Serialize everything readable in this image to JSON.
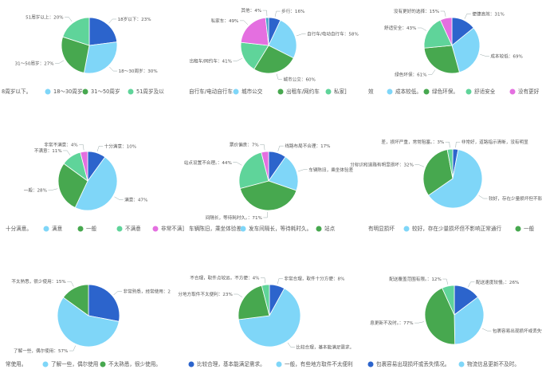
{
  "chart_data": [
    {
      "type": "pie",
      "slices": [
        {
          "label": "18岁以下",
          "value": 23,
          "color": "#2c64cc"
        },
        {
          "label": "18～30周岁",
          "value": 30,
          "color": "#7fd6f8"
        },
        {
          "label": "31～50周岁",
          "value": 27,
          "color": "#47a84f"
        },
        {
          "label": "51周岁以上",
          "value": 20,
          "color": "#5fd49a"
        }
      ],
      "slice_texts": [
        "18岁以下：23%",
        "18～30周岁：30%",
        "31～50周岁：27%",
        "51周岁以上：20%"
      ],
      "legend": [
        "8周岁以下。",
        "18～30周岁",
        "31～50周岁",
        "51周岁及以"
      ]
    },
    {
      "type": "pie",
      "slices": [
        {
          "label": "步行",
          "value": 16,
          "color": "#2c64cc"
        },
        {
          "label": "自行车/电动自行车",
          "value": 58,
          "color": "#7fd6f8"
        },
        {
          "label": "城市公交",
          "value": 60,
          "color": "#47a84f"
        },
        {
          "label": "出租车/网约车",
          "value": 41,
          "color": "#5fd49a"
        },
        {
          "label": "私家车",
          "value": 49,
          "color": "#e46fe0"
        },
        {
          "label": "其他",
          "value": 4,
          "color": "#3fa1c6"
        }
      ],
      "slice_texts": [
        "步行：16%",
        "自行车/电动自行车：58%",
        "城市公交：60%",
        "出租车/网约车：41%",
        "私家车：49%",
        "其他：4%"
      ],
      "legend": [
        "自行车/电动自行车",
        "城市公交",
        "出租车/网约车",
        "私家]"
      ]
    },
    {
      "type": "pie",
      "slices": [
        {
          "label": "便捷高效",
          "value": 31,
          "color": "#2c64cc"
        },
        {
          "label": "成本较低",
          "value": 69,
          "color": "#7fd6f8"
        },
        {
          "label": "绿色环保",
          "value": 61,
          "color": "#47a84f"
        },
        {
          "label": "舒适安全",
          "value": 43,
          "color": "#5fd49a"
        },
        {
          "label": "没有更好的选择",
          "value": 15,
          "color": "#e46fe0"
        }
      ],
      "slice_texts": [
        "便捷高效：31%",
        "成本较低：69%",
        "绿色环保：61%",
        "舒适安全：43%",
        "没有更好的选择：15%"
      ],
      "legend": [
        "效",
        "成本较低。",
        "绿色环保。",
        "舒适安全",
        "没有更好"
      ]
    },
    {
      "type": "pie",
      "slices": [
        {
          "label": "十分满意",
          "value": 10,
          "color": "#2c64cc"
        },
        {
          "label": "满意",
          "value": 47,
          "color": "#7fd6f8"
        },
        {
          "label": "一般",
          "value": 28,
          "color": "#47a84f"
        },
        {
          "label": "不满意",
          "value": 11,
          "color": "#5fd49a"
        },
        {
          "label": "非常不满意",
          "value": 4,
          "color": "#e46fe0"
        }
      ],
      "slice_texts": [
        "十分满意：10%",
        "满意：47%",
        "一般：28%",
        "不满意：11%",
        "非常不满意：4%"
      ],
      "legend": [
        "十分满意。",
        "满意",
        "一般",
        "不满意",
        "非常不满]"
      ]
    },
    {
      "type": "pie",
      "slices": [
        {
          "label": "线路布局不合理",
          "value": 17,
          "color": "#2c64cc"
        },
        {
          "label": "车辆陈旧，乘坐体验差",
          "value": 36,
          "color": "#7fd6f8"
        },
        {
          "label": "发车间隔长，等待耗时久",
          "value": 71,
          "color": "#47a84f"
        },
        {
          "label": "站点设置不合理",
          "value": 44,
          "color": "#5fd49a"
        },
        {
          "label": "票价偏贵",
          "value": 7,
          "color": "#e46fe0"
        }
      ],
      "slice_texts": [
        "线路布局不合理：17%",
        "车辆陈旧，乘坐体验差",
        "间隔长，等待耗时久。：71%",
        "站点设置不合理。：44%",
        "票价偏贵：7%"
      ],
      "legend": [
        "车辆陈旧，乘坐体验差。",
        "发车间隔长，等待耗时久。",
        "站点"
      ]
    },
    {
      "type": "pie",
      "slices": [
        {
          "label": "非常好，道路指示清晰，没有明显损坏",
          "value": 3,
          "color": "#2c64cc"
        },
        {
          "label": "较好，存在少量损坏但不影响正常通行",
          "value": 63,
          "color": "#7fd6f8"
        },
        {
          "label": "一般，部分标识和道路有明显损坏",
          "value": 32,
          "color": "#47a84f"
        },
        {
          "label": "差，损坏严重，常常阻塞",
          "value": 3,
          "color": "#5fd49a"
        }
      ],
      "slice_texts": [
        "非常好，道路指示清晰，没有明显",
        "较好，存在少量损坏但不影响正常通行",
        "分标识和道路有明显损坏：32%",
        "差，损坏严重，常常阻塞。：3%"
      ],
      "legend": [
        "有明显损坏",
        "较好，存在少量损坏但不影响正常通行",
        "一般"
      ]
    },
    {
      "type": "pie",
      "slices": [
        {
          "label": "非常熟悉，经常使用",
          "value": 28,
          "color": "#2c64cc"
        },
        {
          "label": "了解一些，偶尔使用",
          "value": 57,
          "color": "#7fd6f8"
        },
        {
          "label": "不太熟悉，很少使用",
          "value": 15,
          "color": "#47a84f"
        }
      ],
      "slice_texts": [
        "非常熟悉，经常使用：2",
        "了解一些，偶尔使用：57%",
        "不太熟悉，很少使用：15%"
      ],
      "legend": [
        "常使用。",
        "了解一些，偶尔使用",
        "不太熟悉，很少使用。"
      ]
    },
    {
      "type": "pie",
      "slices": [
        {
          "label": "非常合理，取件十分方便",
          "value": 8,
          "color": "#2c64cc"
        },
        {
          "label": "比较合理，基本能满足需求",
          "value": 65,
          "color": "#7fd6f8"
        },
        {
          "label": "一般，有些地方取件不太便利",
          "value": 23,
          "color": "#47a84f"
        },
        {
          "label": "不合理，取件点较远，不方便",
          "value": 4,
          "color": "#5fd49a"
        }
      ],
      "slice_texts": [
        "非常合理，取件十分方便：8%",
        "比较合理，基本能满足需求。",
        "分地方取件不太便利：23%",
        "不合理，取件点较远，不方便：4%"
      ],
      "legend": [
        "比较合理，基本能满足需求。",
        "一般，有些地方取件不太便利"
      ]
    },
    {
      "type": "pie",
      "slices": [
        {
          "label": "配送速度较慢",
          "value": 26,
          "color": "#2c64cc"
        },
        {
          "label": "包裹容易出现损坏或丢失情况",
          "value": 62,
          "color": "#7fd6f8"
        },
        {
          "label": "物流信息更新不及时",
          "value": 77,
          "color": "#47a84f"
        },
        {
          "label": "配送覆盖范围有限",
          "value": 12,
          "color": "#5fd49a"
        }
      ],
      "slice_texts": [
        "配送速度较慢。：26%",
        "包裹容易出现损坏或丢失情",
        "息更新不及时。：77%",
        "配送覆盖范围有限。：12%"
      ],
      "legend": [
        "包裹容易出现损坏或丢失情况。",
        "物流信息更新不及时。"
      ]
    }
  ]
}
